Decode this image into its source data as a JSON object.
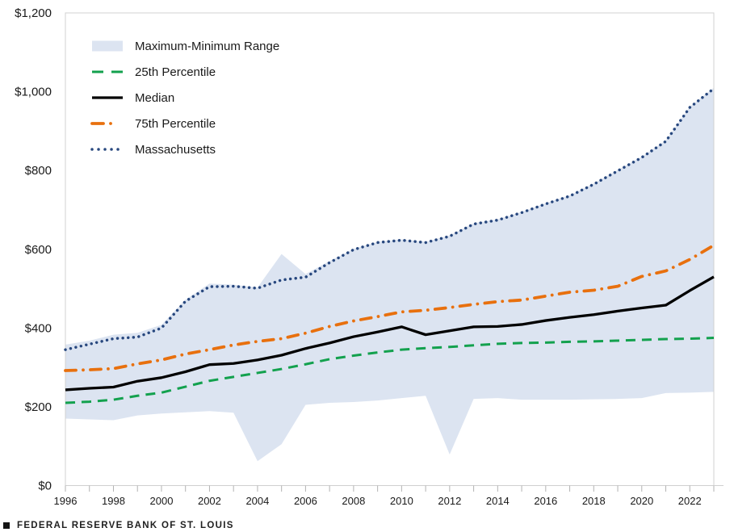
{
  "footer": {
    "source": "FEDERAL RESERVE BANK OF ST. LOUIS"
  },
  "chart_data": {
    "type": "area",
    "title": "",
    "x": [
      1996,
      1997,
      1998,
      1999,
      2000,
      2001,
      2002,
      2003,
      2004,
      2005,
      2006,
      2007,
      2008,
      2009,
      2010,
      2011,
      2012,
      2013,
      2014,
      2015,
      2016,
      2017,
      2018,
      2019,
      2020,
      2021,
      2022,
      2023
    ],
    "series": [
      {
        "name": "Maximum-Minimum Range",
        "kind": "band",
        "color": "#dce4f1",
        "max": [
          358,
          368,
          383,
          388,
          408,
          472,
          513,
          510,
          503,
          588,
          537,
          570,
          601,
          619,
          625,
          619,
          635,
          666,
          676,
          695,
          717,
          737,
          767,
          801,
          835,
          876,
          962,
          1010
        ],
        "min": [
          170,
          168,
          166,
          178,
          183,
          186,
          189,
          185,
          62,
          105,
          205,
          210,
          212,
          216,
          222,
          228,
          79,
          220,
          222,
          218,
          218,
          218,
          219,
          220,
          222,
          235,
          236,
          238
        ]
      },
      {
        "name": "25th Percentile",
        "kind": "line",
        "dash": "dashed",
        "color": "#13a14e",
        "width": 3,
        "values": [
          210,
          213,
          218,
          228,
          236,
          251,
          266,
          276,
          286,
          296,
          308,
          321,
          330,
          338,
          345,
          349,
          352,
          356,
          360,
          362,
          363,
          365,
          366,
          368,
          370,
          372,
          373,
          375
        ]
      },
      {
        "name": "Median",
        "kind": "line",
        "dash": "solid",
        "color": "#000000",
        "width": 3.3,
        "values": [
          243,
          247,
          250,
          265,
          274,
          289,
          307,
          310,
          319,
          331,
          348,
          362,
          378,
          390,
          403,
          383,
          393,
          403,
          404,
          409,
          419,
          427,
          434,
          443,
          451,
          458,
          495,
          530
        ]
      },
      {
        "name": "75th Percentile",
        "kind": "line",
        "dash": "dashdot",
        "color": "#e8700e",
        "width": 3.8,
        "values": [
          292,
          294,
          297,
          309,
          319,
          334,
          345,
          357,
          366,
          373,
          387,
          404,
          418,
          429,
          441,
          445,
          452,
          460,
          467,
          471,
          481,
          491,
          496,
          506,
          531,
          545,
          574,
          610
        ]
      },
      {
        "name": "Massachusetts",
        "kind": "line",
        "dash": "dotted",
        "color": "#27477e",
        "width": 3.5,
        "values": [
          345,
          359,
          373,
          377,
          400,
          468,
          505,
          506,
          501,
          522,
          529,
          566,
          599,
          617,
          623,
          617,
          633,
          664,
          674,
          693,
          715,
          735,
          765,
          799,
          833,
          874,
          960,
          1008
        ]
      }
    ],
    "y_axis": {
      "tick_labels": [
        "$0",
        "$200",
        "$400",
        "$600",
        "$800",
        "$1,000",
        "$1,200"
      ],
      "tick_values": [
        0,
        200,
        400,
        600,
        800,
        1000,
        1200
      ],
      "range": [
        0,
        1200
      ]
    },
    "x_axis": {
      "tick_label_years": [
        1996,
        1998,
        2000,
        2002,
        2004,
        2006,
        2008,
        2010,
        2012,
        2014,
        2016,
        2018,
        2020,
        2022
      ],
      "range": [
        1996,
        2023
      ]
    },
    "legend_position": "top-left",
    "grid": false
  }
}
